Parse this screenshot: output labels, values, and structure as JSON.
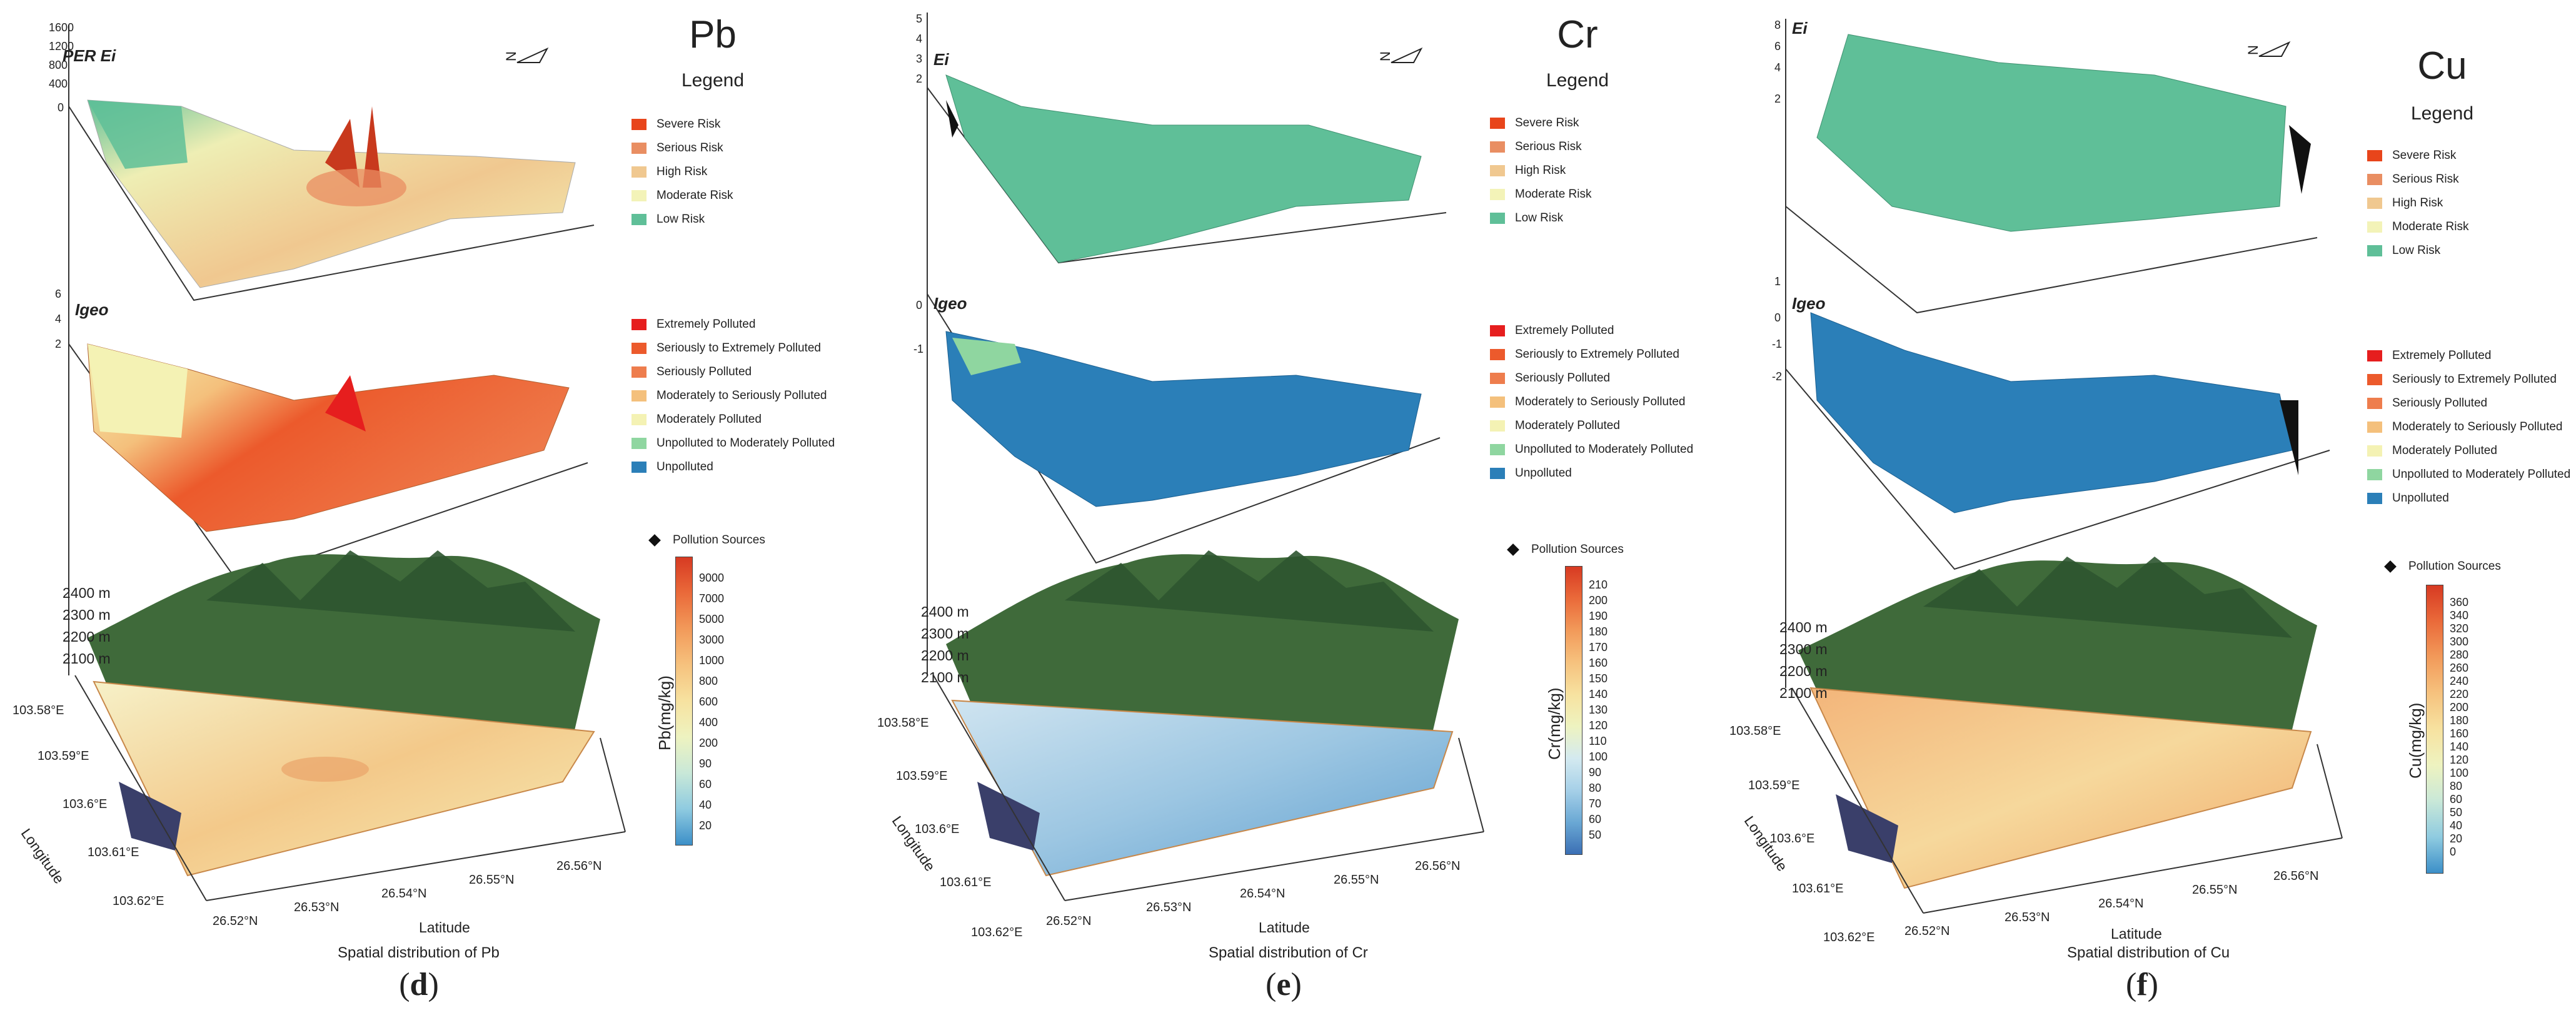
{
  "risk_legend": [
    {
      "label": "Severe Risk",
      "color": "#e8451b"
    },
    {
      "label": "Serious Risk",
      "color": "#e98e62"
    },
    {
      "label": "High Risk",
      "color": "#f0c890"
    },
    {
      "label": "Moderate Risk",
      "color": "#f3f3b8"
    },
    {
      "label": "Low Risk",
      "color": "#5fbf98"
    }
  ],
  "igeo_legend": [
    {
      "label": "Extremely Polluted",
      "color": "#e61e1e"
    },
    {
      "label": "Seriously to Extremely Polluted",
      "color": "#ec5a2c"
    },
    {
      "label": "Seriously Polluted",
      "color": "#ee7d4d"
    },
    {
      "label": "Moderately to Seriously Polluted",
      "color": "#f4c07c"
    },
    {
      "label": "Moderately Polluted",
      "color": "#f4f2b4"
    },
    {
      "label": "Unpolluted to Moderately Polluted",
      "color": "#8fd6a0"
    },
    {
      "label": "Unpolluted",
      "color": "#2b7fb8"
    }
  ],
  "legend_heading": "Legend",
  "pollution_sources_label": "Pollution Sources",
  "elevation_ticks": [
    "2400 m",
    "2300 m",
    "2200 m",
    "2100 m"
  ],
  "longitude_ticks": [
    "103.58°E",
    "103.59°E",
    "103.6°E",
    "103.61°E",
    "103.62°E"
  ],
  "latitude_ticks": [
    "26.52°N",
    "26.53°N",
    "26.54°N",
    "26.55°N",
    "26.56°N"
  ],
  "longitude_label": "Longitude",
  "latitude_label": "Latitude",
  "colors": {
    "low_risk": "#5fbf98",
    "unpolluted": "#2b7fb8",
    "pollutedOrange": "#ec6a34",
    "landsat_green": "#3f6a3a"
  },
  "panels": [
    {
      "id": "d",
      "element": "Pb",
      "ei_axis_label": "PER Ei",
      "ei_ticks": [
        "1600",
        "1200",
        "800",
        "400",
        "0"
      ],
      "igeo_axis_label": "Igeo",
      "igeo_ticks": [
        "6",
        "4",
        "2"
      ],
      "colorbar_label": "Pb(mg/kg)",
      "colorbar_ticks": [
        "9000",
        "7000",
        "5000",
        "3000",
        "1000",
        "800",
        "600",
        "400",
        "200",
        "90",
        "60",
        "40",
        "20"
      ],
      "caption": "Spatial distribution of Pb",
      "panel_label": "d"
    },
    {
      "id": "e",
      "element": "Cr",
      "ei_axis_label": "Ei",
      "ei_ticks": [
        "5",
        "4",
        "3",
        "2"
      ],
      "igeo_axis_label": "Igeo",
      "igeo_ticks": [
        "0",
        "-1"
      ],
      "colorbar_label": "Cr(mg/kg)",
      "colorbar_ticks": [
        "210",
        "200",
        "190",
        "180",
        "170",
        "160",
        "150",
        "140",
        "130",
        "120",
        "110",
        "100",
        "90",
        "80",
        "70",
        "60",
        "50"
      ],
      "caption": "Spatial distribution of Cr",
      "panel_label": "e"
    },
    {
      "id": "f",
      "element": "Cu",
      "ei_axis_label": "Ei",
      "ei_ticks": [
        "8",
        "6",
        "4",
        "2"
      ],
      "igeo_axis_label": "Igeo",
      "igeo_ticks": [
        "1",
        "0",
        "-1",
        "-2"
      ],
      "colorbar_label": "Cu(mg/kg)",
      "colorbar_ticks": [
        "360",
        "340",
        "320",
        "300",
        "280",
        "260",
        "240",
        "220",
        "200",
        "180",
        "160",
        "140",
        "120",
        "100",
        "80",
        "60",
        "50",
        "40",
        "20",
        "0"
      ],
      "caption": "Spatial distribution of Cu",
      "panel_label": "f"
    }
  ]
}
